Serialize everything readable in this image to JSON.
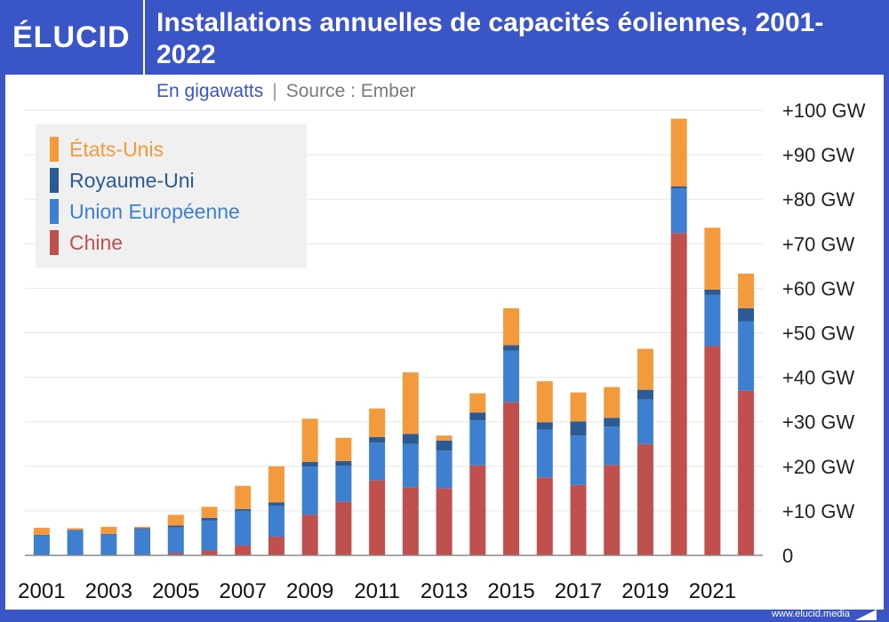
{
  "header": {
    "logo_text": "ÉLUCID",
    "title": "Installations annuelles de capacités éoliennes, 2001-2022"
  },
  "subtitle": {
    "unit": "En gigawatts",
    "separator": "|",
    "source": "Source : Ember"
  },
  "footer": {
    "url": "www.elucid.media"
  },
  "chart_data": {
    "type": "bar",
    "stacked": true,
    "title": "Installations annuelles de capacités éoliennes, 2001-2022",
    "ylabel": "",
    "xlabel": "",
    "ylim": [
      0,
      100
    ],
    "y_ticks": [
      {
        "value": 100,
        "label": "+100 GW"
      },
      {
        "value": 90,
        "label": "+90 GW"
      },
      {
        "value": 80,
        "label": "+80 GW"
      },
      {
        "value": 70,
        "label": "+70 GW"
      },
      {
        "value": 60,
        "label": "+60 GW"
      },
      {
        "value": 50,
        "label": "+50 GW"
      },
      {
        "value": 40,
        "label": "+40 GW"
      },
      {
        "value": 30,
        "label": "+30 GW"
      },
      {
        "value": 20,
        "label": "+20 GW"
      },
      {
        "value": 10,
        "label": "+10 GW"
      },
      {
        "value": 0,
        "label": "0"
      }
    ],
    "y_axis_position": "right",
    "grid": true,
    "legend_position": "top-left",
    "categories": [
      "2001",
      "2002",
      "2003",
      "2004",
      "2005",
      "2006",
      "2007",
      "2008",
      "2009",
      "2010",
      "2011",
      "2012",
      "2013",
      "2014",
      "2015",
      "2016",
      "2017",
      "2018",
      "2019",
      "2020",
      "2021",
      "2022"
    ],
    "x_tick_labels": [
      "2001",
      "2003",
      "2005",
      "2007",
      "2009",
      "2011",
      "2013",
      "2015",
      "2017",
      "2019",
      "2021"
    ],
    "series": [
      {
        "name": "Chine",
        "color": "#c0504d",
        "values": [
          0.1,
          0.1,
          0.1,
          0.2,
          0.5,
          1.1,
          2.2,
          4.2,
          9.1,
          12.0,
          16.9,
          15.3,
          15.1,
          20.2,
          34.4,
          17.5,
          15.8,
          20.3,
          25.0,
          72.4,
          47.0,
          37.0
        ]
      },
      {
        "name": "Union Européenne",
        "color": "#3f7fd0",
        "values": [
          4.4,
          5.5,
          4.6,
          5.7,
          5.8,
          6.7,
          7.8,
          6.9,
          10.8,
          8.1,
          8.4,
          9.7,
          8.4,
          10.1,
          11.6,
          10.7,
          11.1,
          8.6,
          10.0,
          10.0,
          11.5,
          15.6
        ]
      },
      {
        "name": "Royaume-Uni",
        "color": "#2c5a94",
        "values": [
          0.1,
          0.1,
          0.1,
          0.2,
          0.4,
          0.6,
          0.4,
          0.8,
          1.1,
          1.1,
          1.3,
          2.3,
          2.3,
          1.8,
          1.2,
          1.7,
          3.2,
          2.0,
          2.2,
          0.5,
          1.2,
          2.9
        ]
      },
      {
        "name": "États-Unis",
        "color": "#f39a3c",
        "values": [
          1.6,
          0.4,
          1.6,
          0.3,
          2.4,
          2.5,
          5.2,
          8.1,
          9.7,
          5.2,
          6.4,
          13.8,
          1.1,
          4.3,
          8.3,
          9.2,
          6.5,
          6.9,
          9.2,
          15.2,
          13.9,
          7.8
        ]
      }
    ]
  }
}
